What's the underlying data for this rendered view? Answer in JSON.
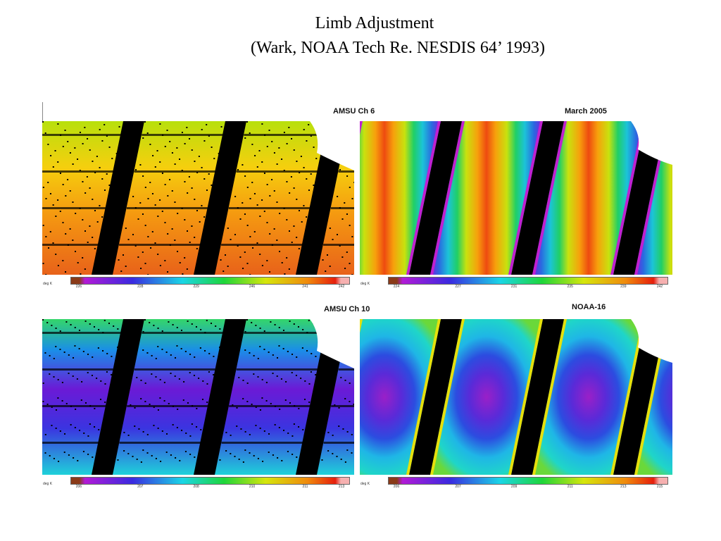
{
  "title": {
    "line1": "Limb Adjustment",
    "line2": "(Wark, NOAA Tech Re. NESDIS 64’ 1993)"
  },
  "labels": {
    "ch6": "AMSU Ch 6",
    "date": "March  2005",
    "ch10": "AMSU Ch 10",
    "sat": "NOAA-16"
  },
  "colors": {
    "ch6_raw": [
      "#e03a12",
      "#f07a10",
      "#f7b20e",
      "#d8e60c",
      "#5fd62a"
    ],
    "ch6_adj": [
      "#ee4a10",
      "#f3870d",
      "#f7c00c",
      "#a8e20e",
      "#20cf66",
      "#1cc3d8",
      "#2a6ae0",
      "#7a1ce0"
    ],
    "ch10_raw": [
      "#6b1ad6",
      "#3b34e0",
      "#1a8ee8",
      "#1fd1da",
      "#34d66a"
    ],
    "ch10_adj": [
      "#9a20c8",
      "#5a2ad8",
      "#2c4ce0",
      "#1fb6e6",
      "#1fd6c8",
      "#6ad83a",
      "#d8e40c"
    ]
  },
  "colorbars": [
    {
      "unit": "deg K",
      "ticks": [
        "226",
        "228",
        "229",
        "246",
        "241",
        "242"
      ]
    },
    {
      "unit": "deg K",
      "ticks": [
        "224",
        "227",
        "231",
        "235",
        "239",
        "242"
      ]
    },
    {
      "unit": "deg K",
      "ticks": [
        "206",
        "207",
        "208",
        "210",
        "211",
        "213"
      ]
    },
    {
      "unit": "deg K",
      "ticks": [
        "206",
        "207",
        "209",
        "211",
        "213",
        "215"
      ]
    }
  ]
}
